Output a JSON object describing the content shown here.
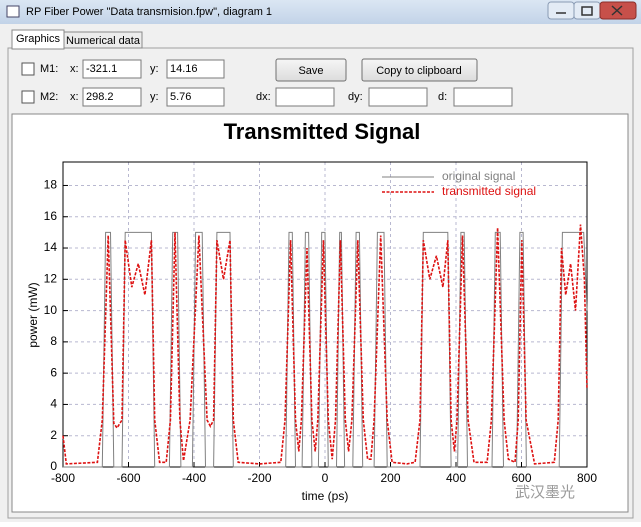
{
  "window": {
    "title": "RP Fiber Power \"Data transmision.fpw\", diagram 1"
  },
  "tabs": [
    "Graphics",
    "Numerical data"
  ],
  "markers": {
    "m1": {
      "label": "M1:",
      "x_label": "x:",
      "x": "-321.1",
      "y_label": "y:",
      "y": "14.16"
    },
    "m2": {
      "label": "M2:",
      "x_label": "x:",
      "x": "298.2",
      "y_label": "y:",
      "y": "5.76",
      "dx_label": "dx:",
      "dy_label": "dy:",
      "d_label": "d:"
    }
  },
  "buttons": {
    "save": "Save",
    "copy": "Copy to clipboard"
  },
  "watermark": "武汉墨光",
  "chart_data": {
    "type": "line",
    "title": "Transmitted Signal",
    "x_label": "time (ps)",
    "y_label": "power (mW)",
    "xlim": [
      -800,
      800
    ],
    "xticks": [
      -800,
      -600,
      -400,
      -200,
      0,
      200,
      400,
      600,
      800
    ],
    "ylim": [
      0,
      19.5
    ],
    "yticks": [
      0,
      2,
      4,
      6,
      8,
      10,
      12,
      14,
      16,
      18
    ],
    "grid": true,
    "legend": "upper right",
    "series": [
      {
        "name": "original signal",
        "color": "#808080",
        "dashed": false,
        "x": [
          -800,
          -680,
          -670,
          -655,
          -645,
          -620,
          -610,
          -530,
          -520,
          -475,
          -465,
          -450,
          -440,
          -405,
          -395,
          -375,
          -365,
          -340,
          -330,
          -290,
          -280,
          -120,
          -110,
          -100,
          -90,
          -70,
          -60,
          -50,
          -40,
          -20,
          -10,
          0,
          10,
          35,
          45,
          50,
          60,
          85,
          95,
          105,
          115,
          150,
          160,
          180,
          190,
          290,
          300,
          375,
          385,
          405,
          415,
          425,
          435,
          510,
          520,
          535,
          545,
          585,
          595,
          605,
          615,
          715,
          725,
          790,
          800
        ],
        "values": [
          0,
          0,
          15,
          15,
          0,
          0,
          15,
          15,
          0,
          0,
          15,
          15,
          0,
          0,
          15,
          15,
          0,
          0,
          15,
          15,
          0,
          0,
          15,
          15,
          0,
          0,
          15,
          15,
          0,
          0,
          15,
          15,
          0,
          0,
          15,
          15,
          0,
          0,
          15,
          15,
          0,
          0,
          15,
          15,
          0,
          0,
          15,
          15,
          0,
          0,
          15,
          15,
          0,
          0,
          15,
          15,
          0,
          0,
          15,
          15,
          0,
          0,
          15,
          15,
          10
        ]
      },
      {
        "name": "transmitted signal",
        "color": "#dd1111",
        "dashed": true,
        "x": [
          -800,
          -790,
          -695,
          -680,
          -662,
          -645,
          -635,
          -620,
          -610,
          -590,
          -570,
          -550,
          -530,
          -520,
          -505,
          -485,
          -472,
          -458,
          -443,
          -432,
          -412,
          -385,
          -360,
          -350,
          -340,
          -330,
          -310,
          -290,
          -280,
          -265,
          -200,
          -135,
          -122,
          -105,
          -90,
          -80,
          -72,
          -55,
          -40,
          -30,
          -22,
          -5,
          10,
          22,
          32,
          47,
          62,
          72,
          82,
          100,
          117,
          130,
          140,
          150,
          170,
          190,
          205,
          250,
          275,
          290,
          300,
          320,
          340,
          360,
          375,
          385,
          395,
          403,
          420,
          437,
          455,
          495,
          508,
          527,
          547,
          560,
          580,
          590,
          601,
          614,
          640,
          700,
          712,
          722,
          735,
          750,
          765,
          780,
          792,
          800
        ],
        "values": [
          2,
          0.2,
          0.3,
          3,
          14.8,
          2.8,
          2.5,
          3,
          14.5,
          11.5,
          13,
          11,
          14.5,
          3,
          0.3,
          0.3,
          3,
          15,
          3,
          0.4,
          3,
          14.8,
          3,
          2.6,
          3,
          14.5,
          12,
          14.5,
          3,
          0.3,
          0.2,
          0.3,
          3,
          14.5,
          3,
          1,
          3,
          14,
          3,
          1,
          3,
          14.5,
          3,
          0.5,
          3,
          14.5,
          3,
          1,
          3,
          14.5,
          3,
          0.5,
          0.5,
          3,
          14.8,
          3,
          0.3,
          0.2,
          0.3,
          3,
          14.5,
          12,
          13.5,
          11.5,
          14.5,
          3,
          1,
          3,
          14.8,
          3,
          0.3,
          0.3,
          3,
          15.3,
          3,
          0.5,
          0.3,
          3,
          14.5,
          3,
          0.2,
          0.3,
          3,
          14,
          11,
          13,
          10,
          15.5,
          12,
          5
        ]
      }
    ]
  }
}
